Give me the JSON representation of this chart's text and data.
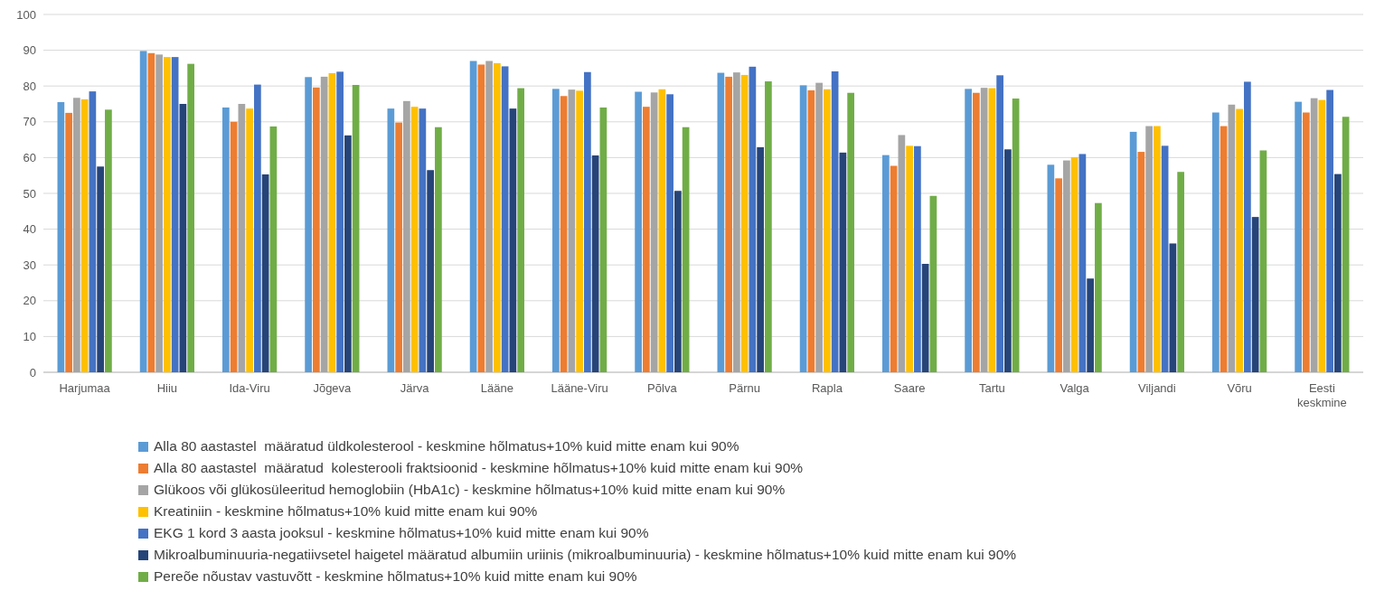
{
  "chart_data": {
    "type": "bar",
    "categories": [
      "Harjumaa",
      "Hiiu",
      "Ida-Viru",
      "Jõgeva",
      "Järva",
      "Lääne",
      "Lääne-Viru",
      "Põlva",
      "Pärnu",
      "Rapla",
      "Saare",
      "Tartu",
      "Valga",
      "Viljandi",
      "Võru",
      "Eesti keskmine"
    ],
    "series": [
      {
        "name": "Alla 80 aastastel  määratud üldkolesterool - keskmine hõlmatus+10% kuid mitte enam kui 90%",
        "color": "#5b9bd5",
        "values": [
          75.5,
          89.8,
          74,
          82.5,
          73.7,
          87,
          79.2,
          78.4,
          83.7,
          80.2,
          60.7,
          79.2,
          58,
          67.2,
          72.6,
          75.6
        ]
      },
      {
        "name": "Alla 80 aastastel  määratud  kolesterooli fraktsioonid - keskmine hõlmatus+10% kuid mitte enam kui 90%",
        "color": "#ed7d31",
        "values": [
          72.5,
          89.2,
          70,
          79.6,
          69.8,
          86,
          77.2,
          74.2,
          82.6,
          78.8,
          57.7,
          78.1,
          54.2,
          61.6,
          68.8,
          72.6
        ]
      },
      {
        "name": "Glükoos või glükosüleeritud hemoglobiin (HbA1c) - keskmine hõlmatus+10% kuid mitte enam kui 90%",
        "color": "#a5a5a5",
        "values": [
          76.7,
          88.8,
          75,
          82.6,
          75.8,
          87,
          79,
          78.2,
          83.8,
          80.9,
          66.3,
          79.5,
          59.2,
          68.8,
          74.8,
          76.6
        ]
      },
      {
        "name": "Kreatiniin - keskmine hõlmatus+10% kuid mitte enam kui 90%",
        "color": "#ffc000",
        "values": [
          76.3,
          88.1,
          73.7,
          83.6,
          74.2,
          86.4,
          78.7,
          79.1,
          83.1,
          79.1,
          63.3,
          79.4,
          60.1,
          68.8,
          73.6,
          76.1
        ]
      },
      {
        "name": "EKG 1 kord 3 aasta jooksul - keskmine hõlmatus+10% kuid mitte enam kui 90%",
        "color": "#4472c4",
        "values": [
          78.5,
          88.1,
          80.4,
          84,
          73.7,
          85.5,
          83.9,
          77.7,
          85.4,
          84.1,
          63.2,
          83,
          61,
          63.3,
          81.2,
          78.9
        ]
      },
      {
        "name": "Mikroalbuminuuria-negatiivsetel haigetel määratud albumiin uriinis (mikroalbuminuuria) - keskmine hõlmatus+10% kuid mitte enam kui 90%",
        "color": "#264478",
        "values": [
          57.5,
          75,
          55.3,
          66.2,
          56.5,
          73.7,
          60.6,
          50.7,
          62.9,
          61.4,
          30.3,
          62.3,
          26.2,
          36,
          43.4,
          55.4
        ]
      },
      {
        "name": "Pereõe nõustav vastuvõtt - keskmine hõlmatus+10% kuid mitte enam kui 90%",
        "color": "#70ad47",
        "values": [
          73.4,
          86.2,
          68.7,
          80.3,
          68.5,
          79.4,
          74,
          68.5,
          81.3,
          78.1,
          49.3,
          76.5,
          47.3,
          56,
          62,
          71.4
        ]
      }
    ],
    "ylim": [
      0,
      100
    ],
    "yticks": [
      0,
      10,
      20,
      30,
      40,
      50,
      60,
      70,
      80,
      90,
      100
    ],
    "grid": "y",
    "legend": "bottom"
  }
}
